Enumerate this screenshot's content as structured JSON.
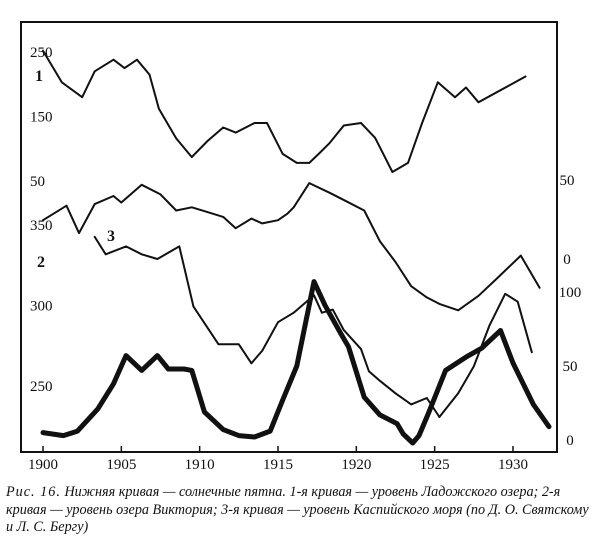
{
  "chart_data": {
    "type": "line",
    "x_ticks": [
      "1900",
      "1905",
      "1910",
      "1915",
      "1920",
      "1925",
      "1930"
    ],
    "left_axis_labels": {
      "curve1": [
        "250",
        "150",
        "50"
      ],
      "curve2": [
        "350",
        "300",
        "250"
      ]
    },
    "right_axis_labels": {
      "curve3": [
        "50",
        "0"
      ],
      "sunspots": [
        "100",
        "50",
        "0"
      ]
    },
    "curve_labels": [
      "1",
      "2",
      "3"
    ],
    "series": [
      {
        "name": "1",
        "axis": "curve1",
        "x": [
          1900,
          1901.2,
          1902.5,
          1903.3,
          1904.5,
          1905.2,
          1906,
          1906.8,
          1907.4,
          1908.5,
          1909.5,
          1910.5,
          1911.5,
          1912.3,
          1913.5,
          1914.3,
          1915.3,
          1916.2,
          1917,
          1917.6,
          1918.3,
          1919.2,
          1920.3,
          1921.2,
          1922.3,
          1923.3,
          1924.2,
          1925.2,
          1926.3,
          1927,
          1927.8,
          1930.8
        ],
        "y": [
          252,
          203,
          180,
          220,
          238,
          225,
          238,
          215,
          162,
          116,
          87,
          112,
          133,
          125,
          140,
          140,
          92,
          78,
          78,
          92,
          109,
          136,
          140,
          117,
          64,
          78,
          140,
          203,
          180,
          195,
          172,
          212
        ]
      },
      {
        "name": "2",
        "axis": "curve2",
        "x": [
          1900,
          1901.5,
          1902.3,
          1903.3,
          1904.5,
          1905,
          1906.3,
          1907.5,
          1908.5,
          1909.5,
          1910.5,
          1911.5,
          1912.3,
          1913.3,
          1914,
          1915,
          1915.6,
          1916,
          1917,
          1918.3,
          1919.3,
          1920.5,
          1921.5,
          1922.5,
          1923.5,
          1924.5,
          1925.3,
          1926.5,
          1927.8,
          1929,
          1930.5,
          1931.7
        ],
        "y": [
          353,
          362,
          345,
          363,
          368,
          364,
          375,
          369,
          359,
          361,
          358,
          355,
          348,
          354,
          351,
          353,
          357,
          361,
          376,
          370,
          365,
          359,
          340,
          327,
          312,
          305,
          301,
          297,
          306,
          317,
          331,
          311
        ]
      },
      {
        "name": "3",
        "axis": "curve3",
        "x": [
          1903.3,
          1904,
          1905.3,
          1906.3,
          1907.3,
          1908.7,
          1909.6,
          1911.2,
          1912.5,
          1913.3,
          1914,
          1915,
          1916,
          1917.3,
          1917.8,
          1918.5,
          1919.2,
          1920.3,
          1920.8,
          1921.5,
          1922.5,
          1923.5,
          1924.5,
          1925.3,
          1926.5,
          1927.5,
          1928.5,
          1929.5,
          1930.3,
          1931.2
        ],
        "y": [
          14,
          3,
          8,
          3,
          0,
          8,
          -30,
          -54,
          -54,
          -66,
          -58,
          -40,
          -34,
          -23,
          -34,
          -32,
          -45,
          -57,
          -71,
          -77,
          -85,
          -92,
          -88,
          -100,
          -85,
          -68,
          -42,
          -22,
          -27,
          -59
        ]
      },
      {
        "name": "sunspots",
        "axis": "sunspots",
        "x": [
          1900,
          1901.3,
          1902.2,
          1903.5,
          1904.5,
          1905.3,
          1906.3,
          1907.3,
          1908,
          1909,
          1909.5,
          1910.3,
          1911.5,
          1912.5,
          1913.5,
          1914.5,
          1915.3,
          1916.2,
          1917.3,
          1918,
          1919,
          1919.5,
          1920.5,
          1921.5,
          1922.6,
          1923,
          1923.6,
          1924,
          1924.6,
          1925.7,
          1927,
          1928,
          1929.2,
          1930,
          1931.3,
          1932.3
        ],
        "y": [
          5,
          3,
          6,
          21,
          38,
          57,
          47,
          57,
          48,
          48,
          47,
          19,
          7,
          3,
          2,
          6,
          27,
          50,
          107,
          91,
          72,
          63,
          29,
          17,
          11,
          4,
          -2,
          3,
          18,
          47,
          56,
          62,
          74,
          52,
          24,
          9
        ]
      }
    ]
  },
  "caption": {
    "figure_number": "Рис. 16.",
    "text": "Нижняя кривая — солнечные пятна. 1-я кривая — уровень Ладожского озера; 2-я кривая — уровень озера Виктория; 3-я кривая — уровень Каспийского моря (по Д. О. Святскому и Л. С. Бергу)"
  }
}
